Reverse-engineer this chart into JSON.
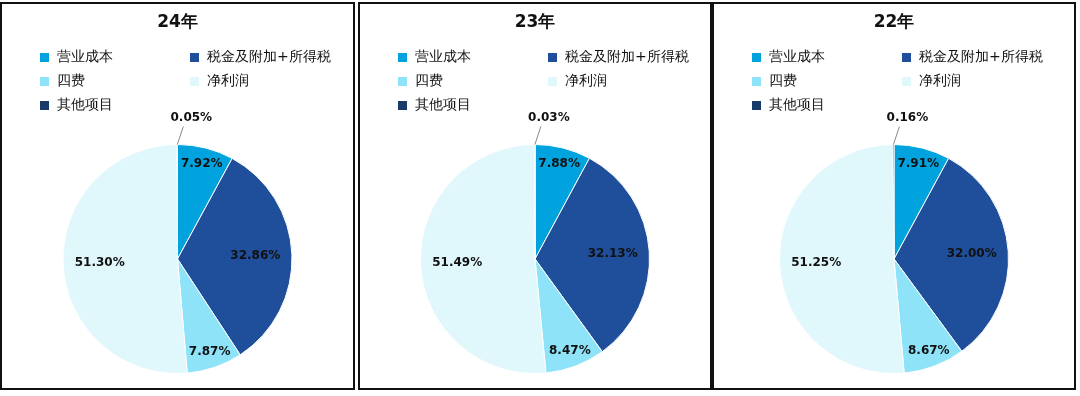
{
  "chart_data": [
    {
      "type": "pie",
      "title": "24年",
      "legend": "top left",
      "categories": [
        "营业成本",
        "税金及附加+所得税",
        "四费",
        "净利润",
        "其他项目"
      ],
      "values": [
        7.92,
        32.86,
        7.87,
        51.3,
        0.05
      ],
      "colors": [
        "#00a3de",
        "#1f4e9b",
        "#8ee3f8",
        "#e0f7fc",
        "#1a3a6a"
      ],
      "value_labels": [
        "7.92%",
        "32.86%",
        "7.87%",
        "51.30%",
        "0.05%"
      ]
    },
    {
      "type": "pie",
      "title": "23年",
      "legend": "top left",
      "categories": [
        "营业成本",
        "税金及附加+所得税",
        "四费",
        "净利润",
        "其他项目"
      ],
      "values": [
        7.88,
        32.13,
        8.47,
        51.49,
        0.03
      ],
      "colors": [
        "#00a3de",
        "#1f4e9b",
        "#8ee3f8",
        "#e0f7fc",
        "#1a3a6a"
      ],
      "value_labels": [
        "7.88%",
        "32.13%",
        "8.47%",
        "51.49%",
        "0.03%"
      ]
    },
    {
      "type": "pie",
      "title": "22年",
      "legend": "top left",
      "categories": [
        "营业成本",
        "税金及附加+所得税",
        "四费",
        "净利润",
        "其他项目"
      ],
      "values": [
        7.91,
        32.0,
        8.67,
        51.25,
        0.16
      ],
      "colors": [
        "#00a3de",
        "#1f4e9b",
        "#8ee3f8",
        "#e0f7fc",
        "#1a3a6a"
      ],
      "value_labels": [
        "7.91%",
        "32.00%",
        "8.67%",
        "51.25%",
        "0.16%"
      ]
    }
  ]
}
